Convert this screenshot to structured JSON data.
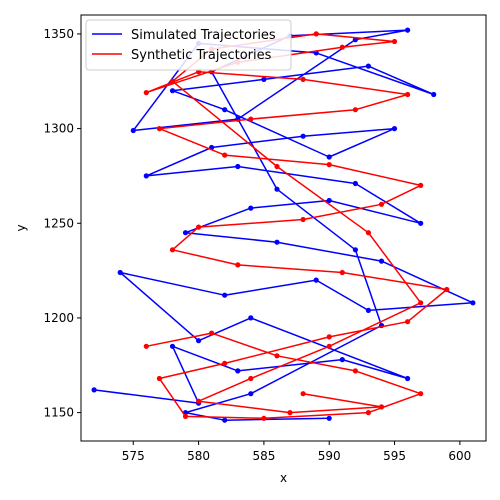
{
  "chart_data": {
    "type": "line",
    "title": "",
    "xlabel": "x",
    "ylabel": "y",
    "xlim": [
      571,
      602
    ],
    "ylim": [
      1135,
      1360
    ],
    "xticks": [
      575,
      580,
      585,
      590,
      595,
      600
    ],
    "yticks": [
      1150,
      1200,
      1250,
      1300,
      1350
    ],
    "grid": false,
    "legend_position": "top-left",
    "markers": true,
    "colors": {
      "simulated": "#0000ff",
      "synthetic": "#ff0000"
    },
    "series": [
      {
        "name": "Simulated Trajectories",
        "color": "#0000ff",
        "x": [
          572,
          580,
          578,
          583,
          591,
          596,
          584,
          580,
          574,
          582,
          589,
          593,
          601,
          594,
          586,
          579,
          584,
          590,
          597,
          592,
          583,
          576,
          581,
          588,
          595,
          590,
          582,
          578,
          585,
          593,
          598,
          589,
          580,
          575,
          583,
          592,
          596,
          587,
          581,
          586,
          592,
          594,
          584,
          579,
          582,
          590
        ],
        "y": [
          1162,
          1155,
          1185,
          1172,
          1178,
          1168,
          1200,
          1188,
          1224,
          1212,
          1220,
          1204,
          1208,
          1230,
          1240,
          1245,
          1258,
          1262,
          1250,
          1271,
          1280,
          1275,
          1290,
          1296,
          1300,
          1285,
          1310,
          1320,
          1326,
          1333,
          1318,
          1340,
          1345,
          1299,
          1305,
          1347,
          1352,
          1349,
          1330,
          1268,
          1236,
          1196,
          1160,
          1150,
          1146,
          1147
        ]
      },
      {
        "name": "Synthetic Trajectories",
        "color": "#ff0000",
        "x": [
          576,
          581,
          586,
          592,
          597,
          593,
          585,
          579,
          577,
          582,
          590,
          596,
          599,
          591,
          583,
          578,
          580,
          588,
          594,
          597,
          590,
          582,
          577,
          584,
          592,
          596,
          588,
          580,
          576,
          583,
          591,
          595,
          589,
          581,
          578,
          586,
          593,
          597,
          590,
          584,
          580,
          587,
          594,
          588
        ],
        "y": [
          1185,
          1192,
          1180,
          1172,
          1160,
          1150,
          1147,
          1148,
          1168,
          1176,
          1190,
          1198,
          1215,
          1224,
          1228,
          1236,
          1248,
          1252,
          1260,
          1270,
          1281,
          1286,
          1300,
          1305,
          1310,
          1318,
          1326,
          1330,
          1319,
          1335,
          1343,
          1346,
          1350,
          1342,
          1325,
          1280,
          1245,
          1208,
          1185,
          1168,
          1156,
          1150,
          1153,
          1160
        ]
      }
    ]
  }
}
